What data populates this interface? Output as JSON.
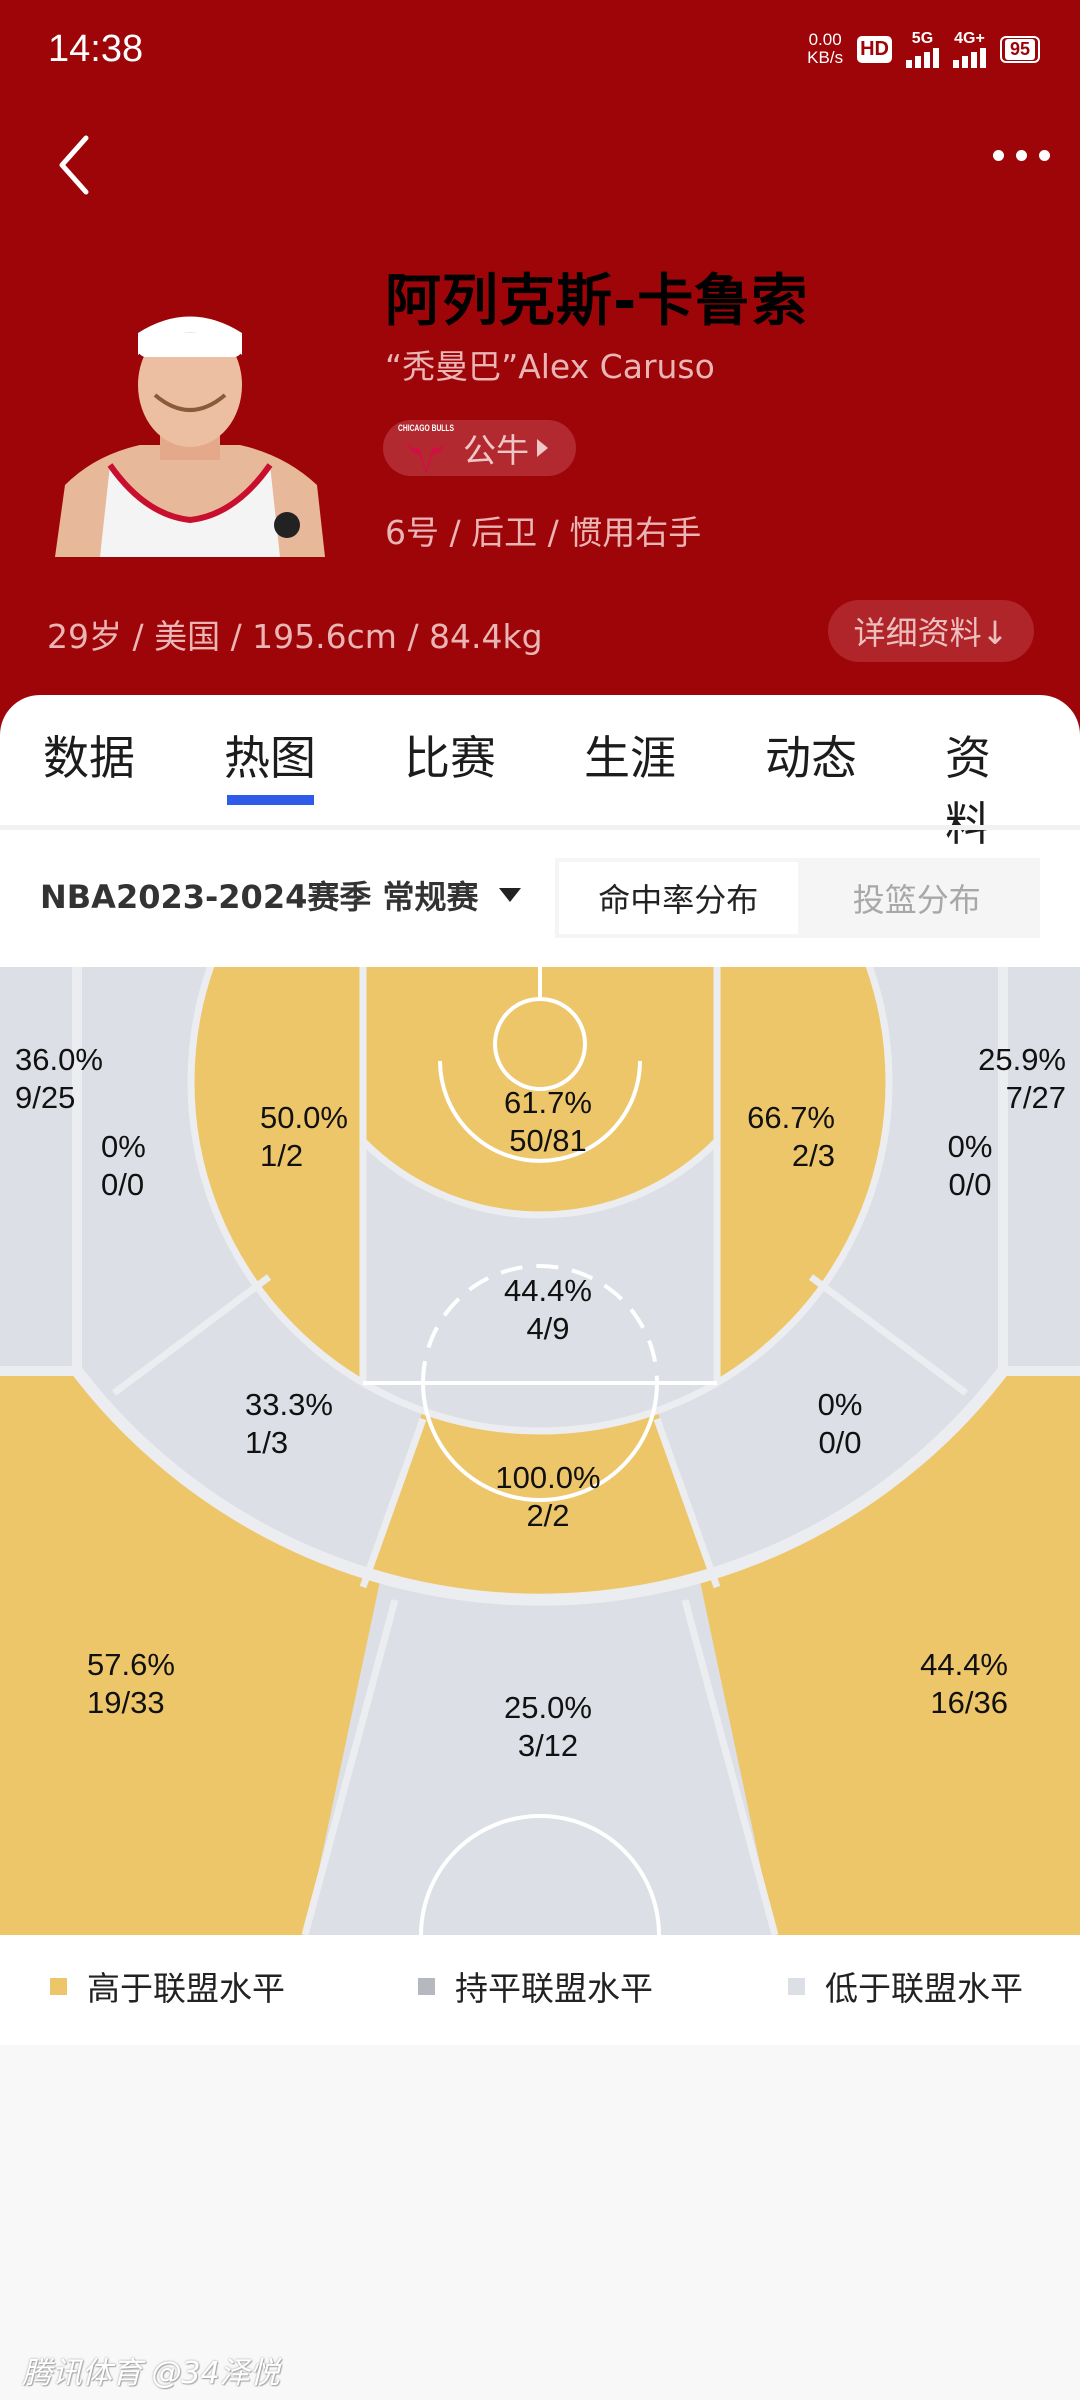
{
  "status_bar": {
    "time": "14:38",
    "net_speed": "0.00",
    "net_unit": "KB/s",
    "hd": "HD",
    "sim_label": "5G",
    "sim2_label": "4G+",
    "battery": "95"
  },
  "nav": {
    "back_icon": "chevron-left-icon",
    "more_icon": "more-horizontal-icon"
  },
  "player": {
    "name": "阿列克斯-卡鲁索",
    "nickname": "“秃曼巴”Alex Caruso",
    "team": "公牛",
    "team_logo_text": "CHICAGO BULLS",
    "position_line": "6号 / 后卫 / 惯用右手",
    "info_line": "29岁 / 美国 / 195.6cm / 84.4kg",
    "detail_button": "详细资料↓"
  },
  "tabs": [
    {
      "label": "数据"
    },
    {
      "label": "热图",
      "active": true
    },
    {
      "label": "比赛"
    },
    {
      "label": "生涯"
    },
    {
      "label": "动态"
    },
    {
      "label": "资料"
    }
  ],
  "filter": {
    "season": "NBA2023-2024赛季 常规赛",
    "toggle": [
      {
        "label": "命中率分布",
        "active": true
      },
      {
        "label": "投篮分布",
        "active": false
      }
    ]
  },
  "colors": {
    "header": "#9E0508",
    "above": "#EEC66A",
    "equal": "#B5B9BF",
    "below": "#DCDFE6",
    "tab_indicator": "#2F5BEA"
  },
  "zones": [
    {
      "id": "left-corner-3",
      "pct": "36.0%",
      "made": "9/25",
      "level": "below"
    },
    {
      "id": "left-wing-mid",
      "pct": "0%",
      "made": "0/0",
      "level": "below"
    },
    {
      "id": "left-mid",
      "pct": "50.0%",
      "made": "1/2",
      "level": "above"
    },
    {
      "id": "restricted",
      "pct": "61.7%",
      "made": "50/81",
      "level": "above"
    },
    {
      "id": "right-mid",
      "pct": "66.7%",
      "made": "2/3",
      "level": "above"
    },
    {
      "id": "right-corner-3",
      "pct": "25.9%",
      "made": "7/27",
      "level": "below"
    },
    {
      "id": "right-wing-mid",
      "pct": "0%",
      "made": "0/0",
      "level": "below"
    },
    {
      "id": "paint",
      "pct": "44.4%",
      "made": "4/9",
      "level": "below"
    },
    {
      "id": "left-elbow",
      "pct": "33.3%",
      "made": "1/3",
      "level": "below"
    },
    {
      "id": "right-elbow",
      "pct": "0%",
      "made": "0/0",
      "level": "below"
    },
    {
      "id": "top-key-mid",
      "pct": "100.0%",
      "made": "2/2",
      "level": "above"
    },
    {
      "id": "left-wing-3",
      "pct": "57.6%",
      "made": "19/33",
      "level": "above"
    },
    {
      "id": "right-wing-3",
      "pct": "44.4%",
      "made": "16/36",
      "level": "above"
    },
    {
      "id": "top-key-3",
      "pct": "25.0%",
      "made": "3/12",
      "level": "below"
    }
  ],
  "legend": [
    {
      "label": "高于联盟水平",
      "color": "#EEC66A"
    },
    {
      "label": "持平联盟水平",
      "color": "#B5B9BF"
    },
    {
      "label": "低于联盟水平",
      "color": "#DCDFE6"
    }
  ],
  "watermark": "腾讯体育 @34泽悦"
}
